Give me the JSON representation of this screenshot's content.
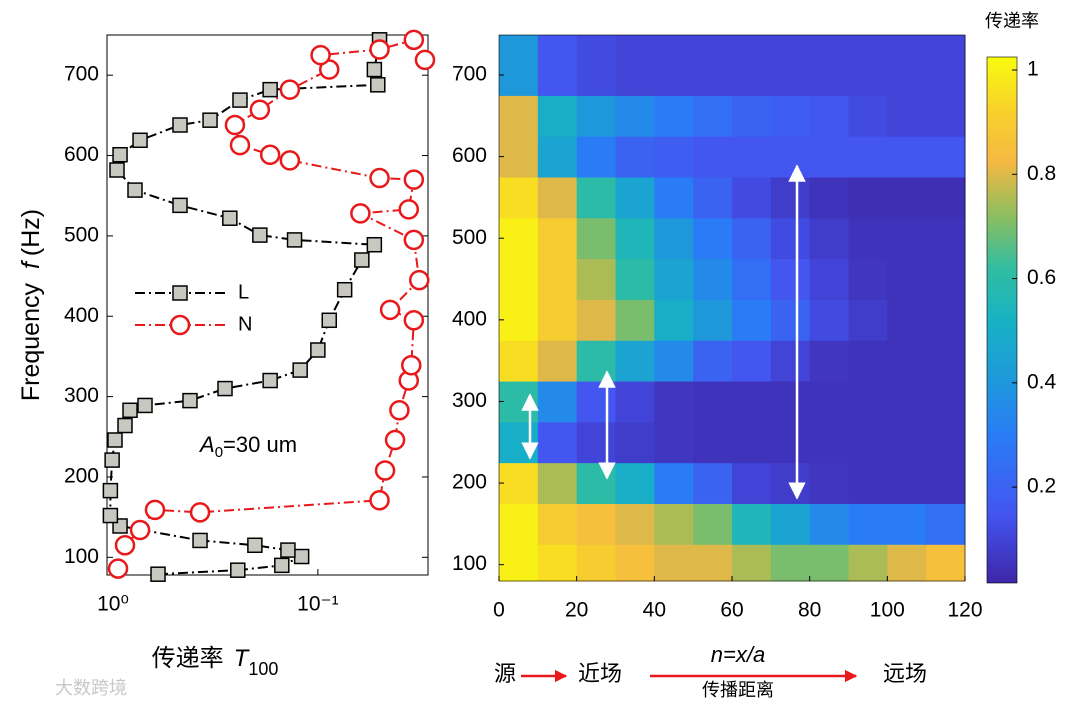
{
  "chart_data": [
    {
      "type": "line",
      "xscale": "log",
      "xlim": [
        1.07,
        0.029
      ],
      "ylim": [
        78,
        750
      ],
      "xticks": [
        {
          "value": 1,
          "label": "10⁰"
        },
        {
          "value": 0.1,
          "label": "10⁻¹"
        }
      ],
      "yticks": [
        100,
        200,
        300,
        400,
        500,
        600,
        700
      ],
      "xlabel": [
        "传递率",
        "T",
        "100"
      ],
      "ylabel": [
        "Frequency",
        "f",
        "(Hz)"
      ],
      "annotation": [
        "A",
        "0",
        "=30 um"
      ],
      "legend": "left",
      "series": [
        {
          "name": "L",
          "color": "#000000",
          "marker": "square",
          "x": [
            0.603,
            0.246,
            0.15,
            0.12,
            0.14,
            0.203,
            0.376,
            0.924,
            1.03,
            1.03,
            1.01,
            0.978,
            0.874,
            0.826,
            0.698,
            0.421,
            0.284,
            0.171,
            0.122,
            0.1,
            0.088,
            0.074,
            0.061,
            0.053,
            0.13,
            0.192,
            0.269,
            0.471,
            0.781,
            0.956,
            0.924,
            0.738,
            0.471,
            0.336,
            0.24,
            0.171,
            0.051,
            0.053,
            0.05
          ],
          "values": [
            79,
            84,
            90,
            101,
            109,
            115,
            121,
            139,
            152,
            183,
            221,
            246,
            264,
            283,
            289,
            295,
            310,
            320,
            333,
            358,
            395,
            433,
            470,
            489,
            495,
            501,
            522,
            538,
            557,
            582,
            601,
            619,
            638,
            644,
            669,
            682,
            688,
            707,
            744
          ]
        },
        {
          "name": "N",
          "color": "#e8191b",
          "marker": "circle",
          "x": [
            0.945,
            0.874,
            0.738,
            0.624,
            0.376,
            0.05,
            0.047,
            0.042,
            0.04,
            0.036,
            0.035,
            0.034,
            0.0444,
            0.032,
            0.034,
            0.062,
            0.036,
            0.034,
            0.05,
            0.137,
            0.171,
            0.24,
            0.254,
            0.192,
            0.137,
            0.088,
            0.097,
            0.05,
            0.034,
            0.03
          ],
          "values": [
            86,
            115,
            134,
            159,
            156,
            171,
            208,
            246,
            283,
            320,
            339,
            395,
            408,
            445,
            495,
            528,
            533,
            570,
            572,
            594,
            601,
            613,
            638,
            657,
            682,
            707,
            725,
            732,
            744,
            719
          ]
        }
      ]
    },
    {
      "type": "heatmap",
      "colormap": "parula",
      "colorbar_title": "传递率",
      "xlim": [
        0,
        120
      ],
      "ylim": [
        80,
        749
      ],
      "clim": [
        0.016,
        1.025
      ],
      "xticks": [
        0,
        20,
        40,
        60,
        80,
        100,
        120
      ],
      "yticks": [
        100,
        200,
        300,
        400,
        500,
        600,
        700
      ],
      "cticks": [
        0.2,
        0.4,
        0.6,
        0.8,
        1
      ],
      "xbins": [
        0,
        10,
        20,
        30,
        40,
        50,
        60,
        70,
        80,
        90,
        100,
        110,
        120
      ],
      "ybins": [
        80,
        125,
        175,
        225,
        275,
        325,
        375,
        425,
        475,
        525,
        575,
        625,
        675,
        749
      ],
      "values": [
        [
          1,
          0.95,
          0.9,
          0.85,
          0.8,
          0.8,
          0.75,
          0.7,
          0.7,
          0.75,
          0.8,
          0.85
        ],
        [
          1,
          0.9,
          0.85,
          0.8,
          0.75,
          0.7,
          0.55,
          0.45,
          0.35,
          0.3,
          0.3,
          0.25
        ],
        [
          0.95,
          0.75,
          0.6,
          0.5,
          0.3,
          0.2,
          0.1,
          0.08,
          0.06,
          0.05,
          0.05,
          0.05
        ],
        [
          0.5,
          0.15,
          0.1,
          0.08,
          0.06,
          0.05,
          0.05,
          0.05,
          0.05,
          0.05,
          0.05,
          0.05
        ],
        [
          0.6,
          0.35,
          0.15,
          0.1,
          0.06,
          0.05,
          0.05,
          0.05,
          0.05,
          0.05,
          0.05,
          0.05
        ],
        [
          0.95,
          0.8,
          0.6,
          0.45,
          0.35,
          0.2,
          0.15,
          0.1,
          0.06,
          0.05,
          0.05,
          0.05
        ],
        [
          1,
          0.9,
          0.8,
          0.7,
          0.5,
          0.4,
          0.3,
          0.2,
          0.12,
          0.08,
          0.05,
          0.05
        ],
        [
          1,
          0.9,
          0.75,
          0.6,
          0.45,
          0.35,
          0.25,
          0.15,
          0.1,
          0.06,
          0.05,
          0.05
        ],
        [
          1,
          0.9,
          0.7,
          0.55,
          0.4,
          0.3,
          0.2,
          0.12,
          0.08,
          0.05,
          0.05,
          0.05
        ],
        [
          0.95,
          0.8,
          0.6,
          0.45,
          0.3,
          0.2,
          0.12,
          0.08,
          0.05,
          0.04,
          0.04,
          0.04
        ],
        [
          0.8,
          0.45,
          0.3,
          0.2,
          0.18,
          0.15,
          0.15,
          0.15,
          0.15,
          0.15,
          0.15,
          0.15
        ],
        [
          0.8,
          0.5,
          0.4,
          0.35,
          0.3,
          0.25,
          0.2,
          0.18,
          0.15,
          0.12,
          0.1,
          0.1
        ],
        [
          0.4,
          0.15,
          0.12,
          0.1,
          0.1,
          0.1,
          0.1,
          0.1,
          0.1,
          0.1,
          0.1,
          0.1
        ]
      ],
      "annotations": {
        "source": "源",
        "near": "近场",
        "formula": "n=x/a",
        "distance": "传播距离",
        "far": "远场"
      }
    }
  ],
  "watermark": "大数跨境"
}
